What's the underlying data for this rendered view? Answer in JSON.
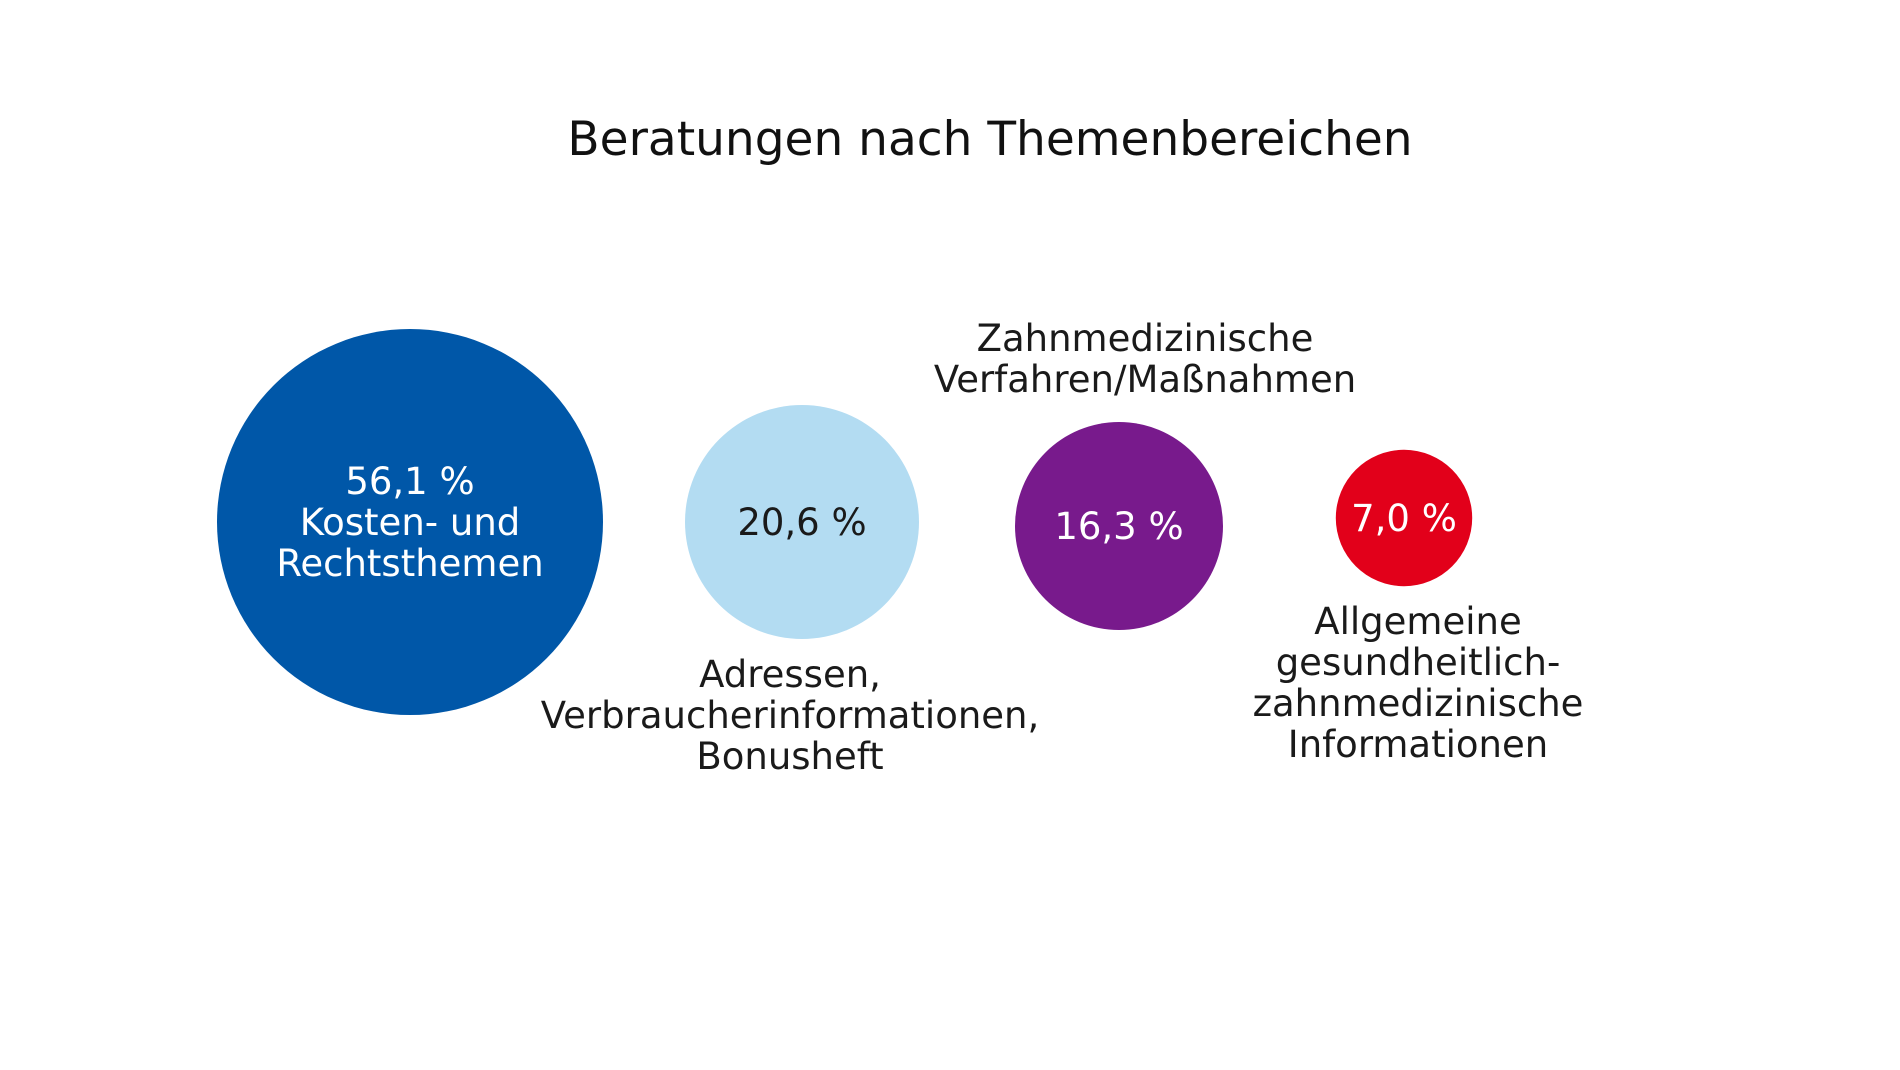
{
  "chart_data": {
    "type": "bubble",
    "title": "Beratungen nach Themenbereichen",
    "unit": "%",
    "series": [
      {
        "value": 56.1,
        "value_label": "56,1 %",
        "category_lines": [
          "Kosten- und",
          "Rechtsthemen"
        ],
        "color": "#0057a8",
        "text_color": "#ffffff"
      },
      {
        "value": 20.6,
        "value_label": "20,6 %",
        "category_lines": [
          "Adressen,",
          "Verbraucherinformationen,",
          "Bonusheft"
        ],
        "color": "#b3dcf2",
        "text_color": "#1a1a1a"
      },
      {
        "value": 16.3,
        "value_label": "16,3 %",
        "category_lines": [
          "Zahnmedizinische",
          "Verfahren/Maßnahmen"
        ],
        "color": "#781a8c",
        "text_color": "#ffffff"
      },
      {
        "value": 7.0,
        "value_label": "7,0 %",
        "category_lines": [
          "Allgemeine",
          "gesundheitlich-",
          "zahnmedizinische",
          "Informationen"
        ],
        "color": "#e2001a",
        "text_color": "#ffffff"
      }
    ]
  }
}
